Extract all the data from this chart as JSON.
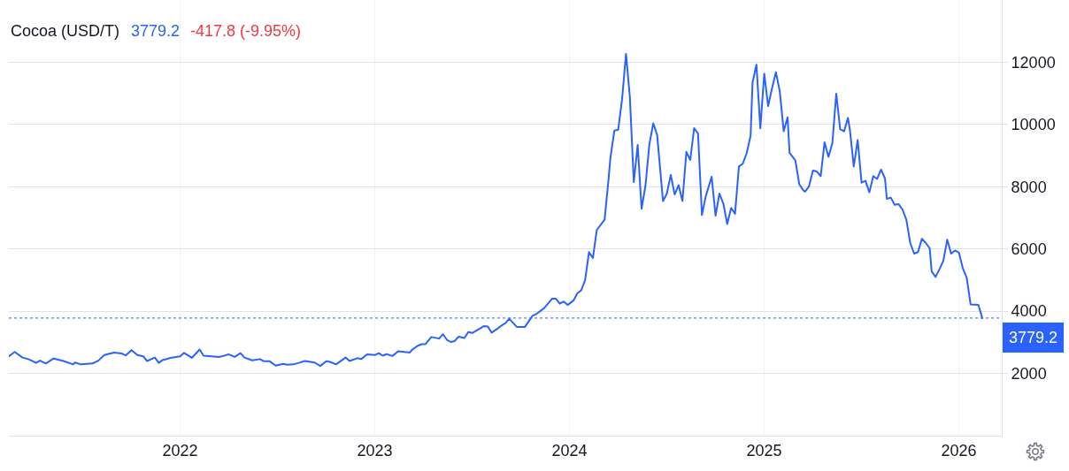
{
  "chart_data": {
    "type": "line",
    "title": "Cocoa (USD/T)",
    "subtitle": "3779.2",
    "annotations": [
      "-417.8 (-9.95%)"
    ],
    "x": [
      2021.12,
      2021.15,
      2021.19,
      2021.22,
      2021.26,
      2021.28,
      2021.31,
      2021.35,
      2021.4,
      2021.45,
      2021.46,
      2021.49,
      2021.55,
      2021.58,
      2021.61,
      2021.66,
      2021.7,
      2021.72,
      2021.75,
      2021.78,
      2021.81,
      2021.83,
      2021.87,
      2021.89,
      2021.91,
      2021.95,
      2022.0,
      2022.02,
      2022.06,
      2022.1,
      2022.12,
      2022.2,
      2022.25,
      2022.28,
      2022.31,
      2022.33,
      2022.37,
      2022.41,
      2022.43,
      2022.46,
      2022.49,
      2022.53,
      2022.55,
      2022.58,
      2022.61,
      2022.64,
      2022.69,
      2022.72,
      2022.75,
      2022.77,
      2022.8,
      2022.85,
      2022.87,
      2022.91,
      2022.93,
      2022.96,
      2023.0,
      2023.02,
      2023.04,
      2023.06,
      2023.09,
      2023.12,
      2023.18,
      2023.19,
      2023.22,
      2023.24,
      2023.26,
      2023.29,
      2023.33,
      2023.35,
      2023.37,
      2023.39,
      2023.41,
      2023.43,
      2023.46,
      2023.48,
      2023.5,
      2023.56,
      2023.58,
      2023.6,
      2023.63,
      2023.66,
      2023.67,
      2023.69,
      2023.73,
      2023.77,
      2023.81,
      2023.83,
      2023.87,
      2023.91,
      2023.93,
      2023.95,
      2023.97,
      2023.99,
      2024.02,
      2024.04,
      2024.06,
      2024.08,
      2024.1,
      2024.12,
      2024.14,
      2024.18,
      2024.2,
      2024.21,
      2024.23,
      2024.25,
      2024.27,
      2024.29,
      2024.31,
      2024.33,
      2024.35,
      2024.37,
      2024.39,
      2024.41,
      2024.43,
      2024.45,
      2024.48,
      2024.5,
      2024.52,
      2024.54,
      2024.56,
      2024.58,
      2024.6,
      2024.62,
      2024.64,
      2024.66,
      2024.68,
      2024.7,
      2024.73,
      2024.75,
      2024.77,
      2024.79,
      2024.81,
      2024.83,
      2024.85,
      2024.87,
      2024.89,
      2024.91,
      2024.93,
      2024.94,
      2024.96,
      2024.98,
      2025.0,
      2025.02,
      2025.04,
      2025.06,
      2025.08,
      2025.1,
      2025.12,
      2025.13,
      2025.16,
      2025.18,
      2025.2,
      2025.21,
      2025.23,
      2025.25,
      2025.27,
      2025.29,
      2025.31,
      2025.33,
      2025.35,
      2025.37,
      2025.39,
      2025.41,
      2025.43,
      2025.44,
      2025.46,
      2025.48,
      2025.5,
      2025.52,
      2025.54,
      2025.56,
      2025.58,
      2025.6,
      2025.62,
      2025.63,
      2025.65,
      2025.67,
      2025.69,
      2025.71,
      2025.73,
      2025.75,
      2025.77,
      2025.79,
      2025.81,
      2025.83,
      2025.85,
      2025.86,
      2025.88,
      2025.9,
      2025.92,
      2025.94,
      2025.96,
      2025.98,
      2026.0,
      2026.02,
      2026.04,
      2026.06,
      2026.1,
      2026.12
    ],
    "series": [
      {
        "color": "#2962ff",
        "values": [
          2550,
          2690,
          2510,
          2460,
          2340,
          2410,
          2320,
          2480,
          2400,
          2290,
          2350,
          2290,
          2320,
          2410,
          2590,
          2670,
          2640,
          2580,
          2750,
          2590,
          2550,
          2400,
          2510,
          2340,
          2430,
          2500,
          2550,
          2660,
          2500,
          2770,
          2570,
          2530,
          2610,
          2530,
          2650,
          2510,
          2420,
          2460,
          2390,
          2390,
          2250,
          2310,
          2280,
          2290,
          2340,
          2400,
          2350,
          2240,
          2390,
          2370,
          2290,
          2510,
          2400,
          2490,
          2460,
          2610,
          2590,
          2650,
          2570,
          2620,
          2560,
          2710,
          2670,
          2750,
          2890,
          2940,
          2940,
          3170,
          3120,
          3260,
          3080,
          3010,
          3040,
          3180,
          3140,
          3330,
          3300,
          3520,
          3510,
          3310,
          3440,
          3580,
          3610,
          3760,
          3490,
          3490,
          3850,
          3910,
          4100,
          4400,
          4400,
          4240,
          4310,
          4200,
          4340,
          4570,
          4670,
          5000,
          5900,
          5710,
          6610,
          6940,
          8220,
          8930,
          9800,
          9830,
          10820,
          12270,
          10870,
          8150,
          9340,
          7290,
          8030,
          9360,
          10040,
          9660,
          7540,
          7780,
          8380,
          7750,
          8050,
          7540,
          9120,
          8860,
          9880,
          9710,
          7090,
          7700,
          8320,
          7070,
          7780,
          7460,
          6800,
          7320,
          7130,
          8650,
          8740,
          9080,
          9640,
          11350,
          11920,
          9880,
          11630,
          10590,
          11160,
          11680,
          11060,
          9780,
          10230,
          9090,
          8840,
          8080,
          7890,
          7840,
          8010,
          8520,
          8490,
          8340,
          9430,
          8960,
          9400,
          10990,
          9850,
          9780,
          10210,
          9830,
          8650,
          9500,
          8130,
          8190,
          7820,
          8340,
          8250,
          8550,
          8270,
          7610,
          7650,
          7420,
          7440,
          7270,
          6940,
          6190,
          5850,
          5900,
          6330,
          6190,
          6020,
          5280,
          5100,
          5350,
          5620,
          6300,
          5850,
          5950,
          5880,
          5380,
          5080,
          4220,
          4200,
          3779.2
        ]
      }
    ],
    "xlim": [
      2021.12,
      2026.22
    ],
    "xticks": [
      2022,
      2023,
      2024,
      2025,
      2026
    ],
    "ylim": [
      0,
      14000
    ],
    "yticks": [
      2000,
      4000,
      6000,
      8000,
      10000,
      12000
    ],
    "ref_lines": [
      {
        "axis": "y",
        "value": 3779.2,
        "label": "3779.2",
        "color": "#2962ff",
        "line_style": "dotted"
      }
    ],
    "grid": true
  }
}
